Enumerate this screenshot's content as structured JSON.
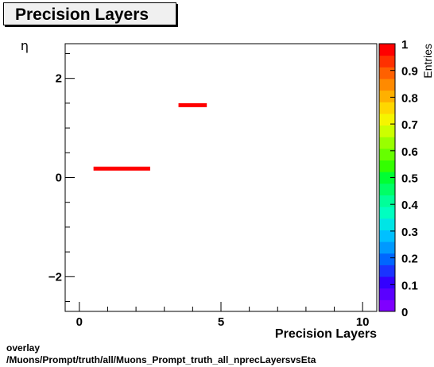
{
  "title": "Precision Layers",
  "caption": {
    "line1": "overlay",
    "line2": "/Muons/Prompt/truth/all/Muons_Prompt_truth_all_nprecLayersvsEta"
  },
  "chart_data": {
    "type": "heatmap",
    "title": "Precision Layers",
    "xlabel": "Precision Layers",
    "ylabel": "η",
    "zlabel": "Entries",
    "xlim": [
      -0.5,
      10.5
    ],
    "ylim": [
      -2.7,
      2.7
    ],
    "zlim": [
      0,
      1
    ],
    "x_ticks": [
      0,
      5,
      10
    ],
    "y_ticks": [
      -2,
      0,
      2
    ],
    "z_ticks": [
      0,
      0.1,
      0.2,
      0.3,
      0.4,
      0.5,
      0.6,
      0.7,
      0.8,
      0.9,
      1
    ],
    "z_tick_labels": [
      "0",
      "0.1",
      "0.2",
      "0.3",
      "0.4",
      "0.5",
      "0.6",
      "0.7",
      "0.8",
      "0.9",
      "1"
    ],
    "bins": [
      {
        "x0": 0.5,
        "x1": 2.5,
        "y0": 0.14,
        "y1": 0.22,
        "value": 1
      },
      {
        "x0": 3.5,
        "x1": 4.5,
        "y0": 1.42,
        "y1": 1.5,
        "value": 1
      }
    ],
    "palette": [
      "#7f00ff",
      "#5a00ff",
      "#3300ff",
      "#1a33ff",
      "#0066ff",
      "#0099ff",
      "#00c0ff",
      "#00e5e5",
      "#00ffc0",
      "#00ff99",
      "#00ff66",
      "#00ff33",
      "#33ff00",
      "#66ff00",
      "#99ff00",
      "#ccff00",
      "#f5f500",
      "#ffd700",
      "#ffb000",
      "#ff8a00",
      "#ff6000",
      "#ff3000",
      "#ff0000"
    ],
    "bin_color": "#ff0000"
  }
}
